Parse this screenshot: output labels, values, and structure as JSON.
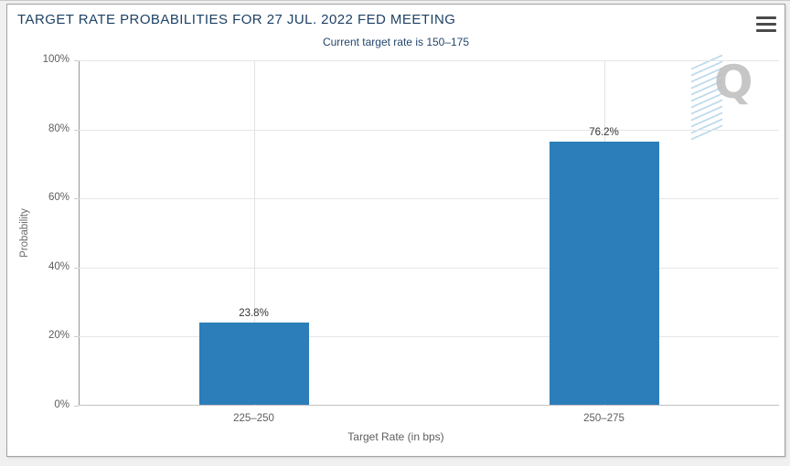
{
  "header": {
    "menu_icon": "hamburger-icon"
  },
  "watermark": {
    "letter": "Q"
  },
  "chart_data": {
    "type": "bar",
    "title": "TARGET RATE PROBABILITIES FOR 27 JUL. 2022 FED MEETING",
    "subtitle": "Current target rate is 150–175",
    "categories": [
      "225–250",
      "250–275"
    ],
    "values": [
      23.8,
      76.2
    ],
    "value_labels": [
      "23.8%",
      "76.2%"
    ],
    "xlabel": "Target Rate (in bps)",
    "ylabel": "Probability",
    "ylim": [
      0,
      100
    ],
    "yticks": [
      0,
      20,
      40,
      60,
      80,
      100
    ],
    "ytick_labels": [
      "0%",
      "20%",
      "40%",
      "60%",
      "80%",
      "100%"
    ],
    "grid": true,
    "legend": "none",
    "bar_color": "#2b7eb9",
    "title_color": "#1d4166",
    "gridline_color": "#e6e6e6"
  }
}
